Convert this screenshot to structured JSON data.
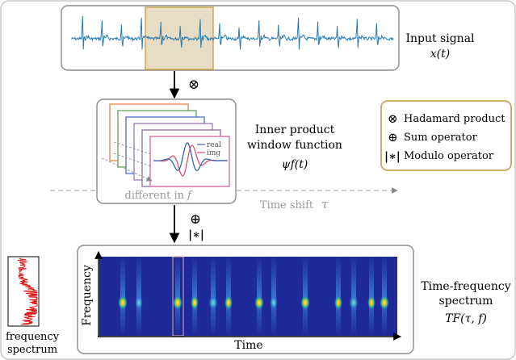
{
  "input": {
    "label": "Input signal",
    "math": "x(t)"
  },
  "operators": {
    "first": "⊗",
    "second_sum": "⊕",
    "second_mod": "|∗|"
  },
  "window": {
    "title_line1": "Inner product",
    "title_line2": "window function",
    "math": "ψf(t)",
    "legend_real": "real",
    "legend_img": "img",
    "caption_text": "different in",
    "caption_var": "f"
  },
  "time_shift": {
    "label": "Time shift",
    "var": "τ"
  },
  "legend_box": {
    "items": [
      {
        "symbol": "⊗",
        "label": "Hadamard product"
      },
      {
        "symbol": "⊕",
        "label": "Sum operator"
      },
      {
        "symbol": "|∗|",
        "label": "Modulo operator"
      }
    ]
  },
  "spectrogram": {
    "xlabel": "Time",
    "ylabel": "Frequency"
  },
  "output": {
    "line1": "Time-frequency",
    "line2": "spectrum",
    "math": "TF(τ, f)"
  },
  "freq_spectrum": {
    "line1": "frequency",
    "line2": "spectrum"
  },
  "colors": {
    "signal": "#2a7ab0",
    "highlight_fill": "#e6ddc4",
    "highlight_stroke": "#c8a84a",
    "legend_border": "#c8b06a",
    "real": "#3b5fb0",
    "img": "#d9546e",
    "spectrum": "#e01818",
    "spec_bg": "#1e2a9a"
  }
}
